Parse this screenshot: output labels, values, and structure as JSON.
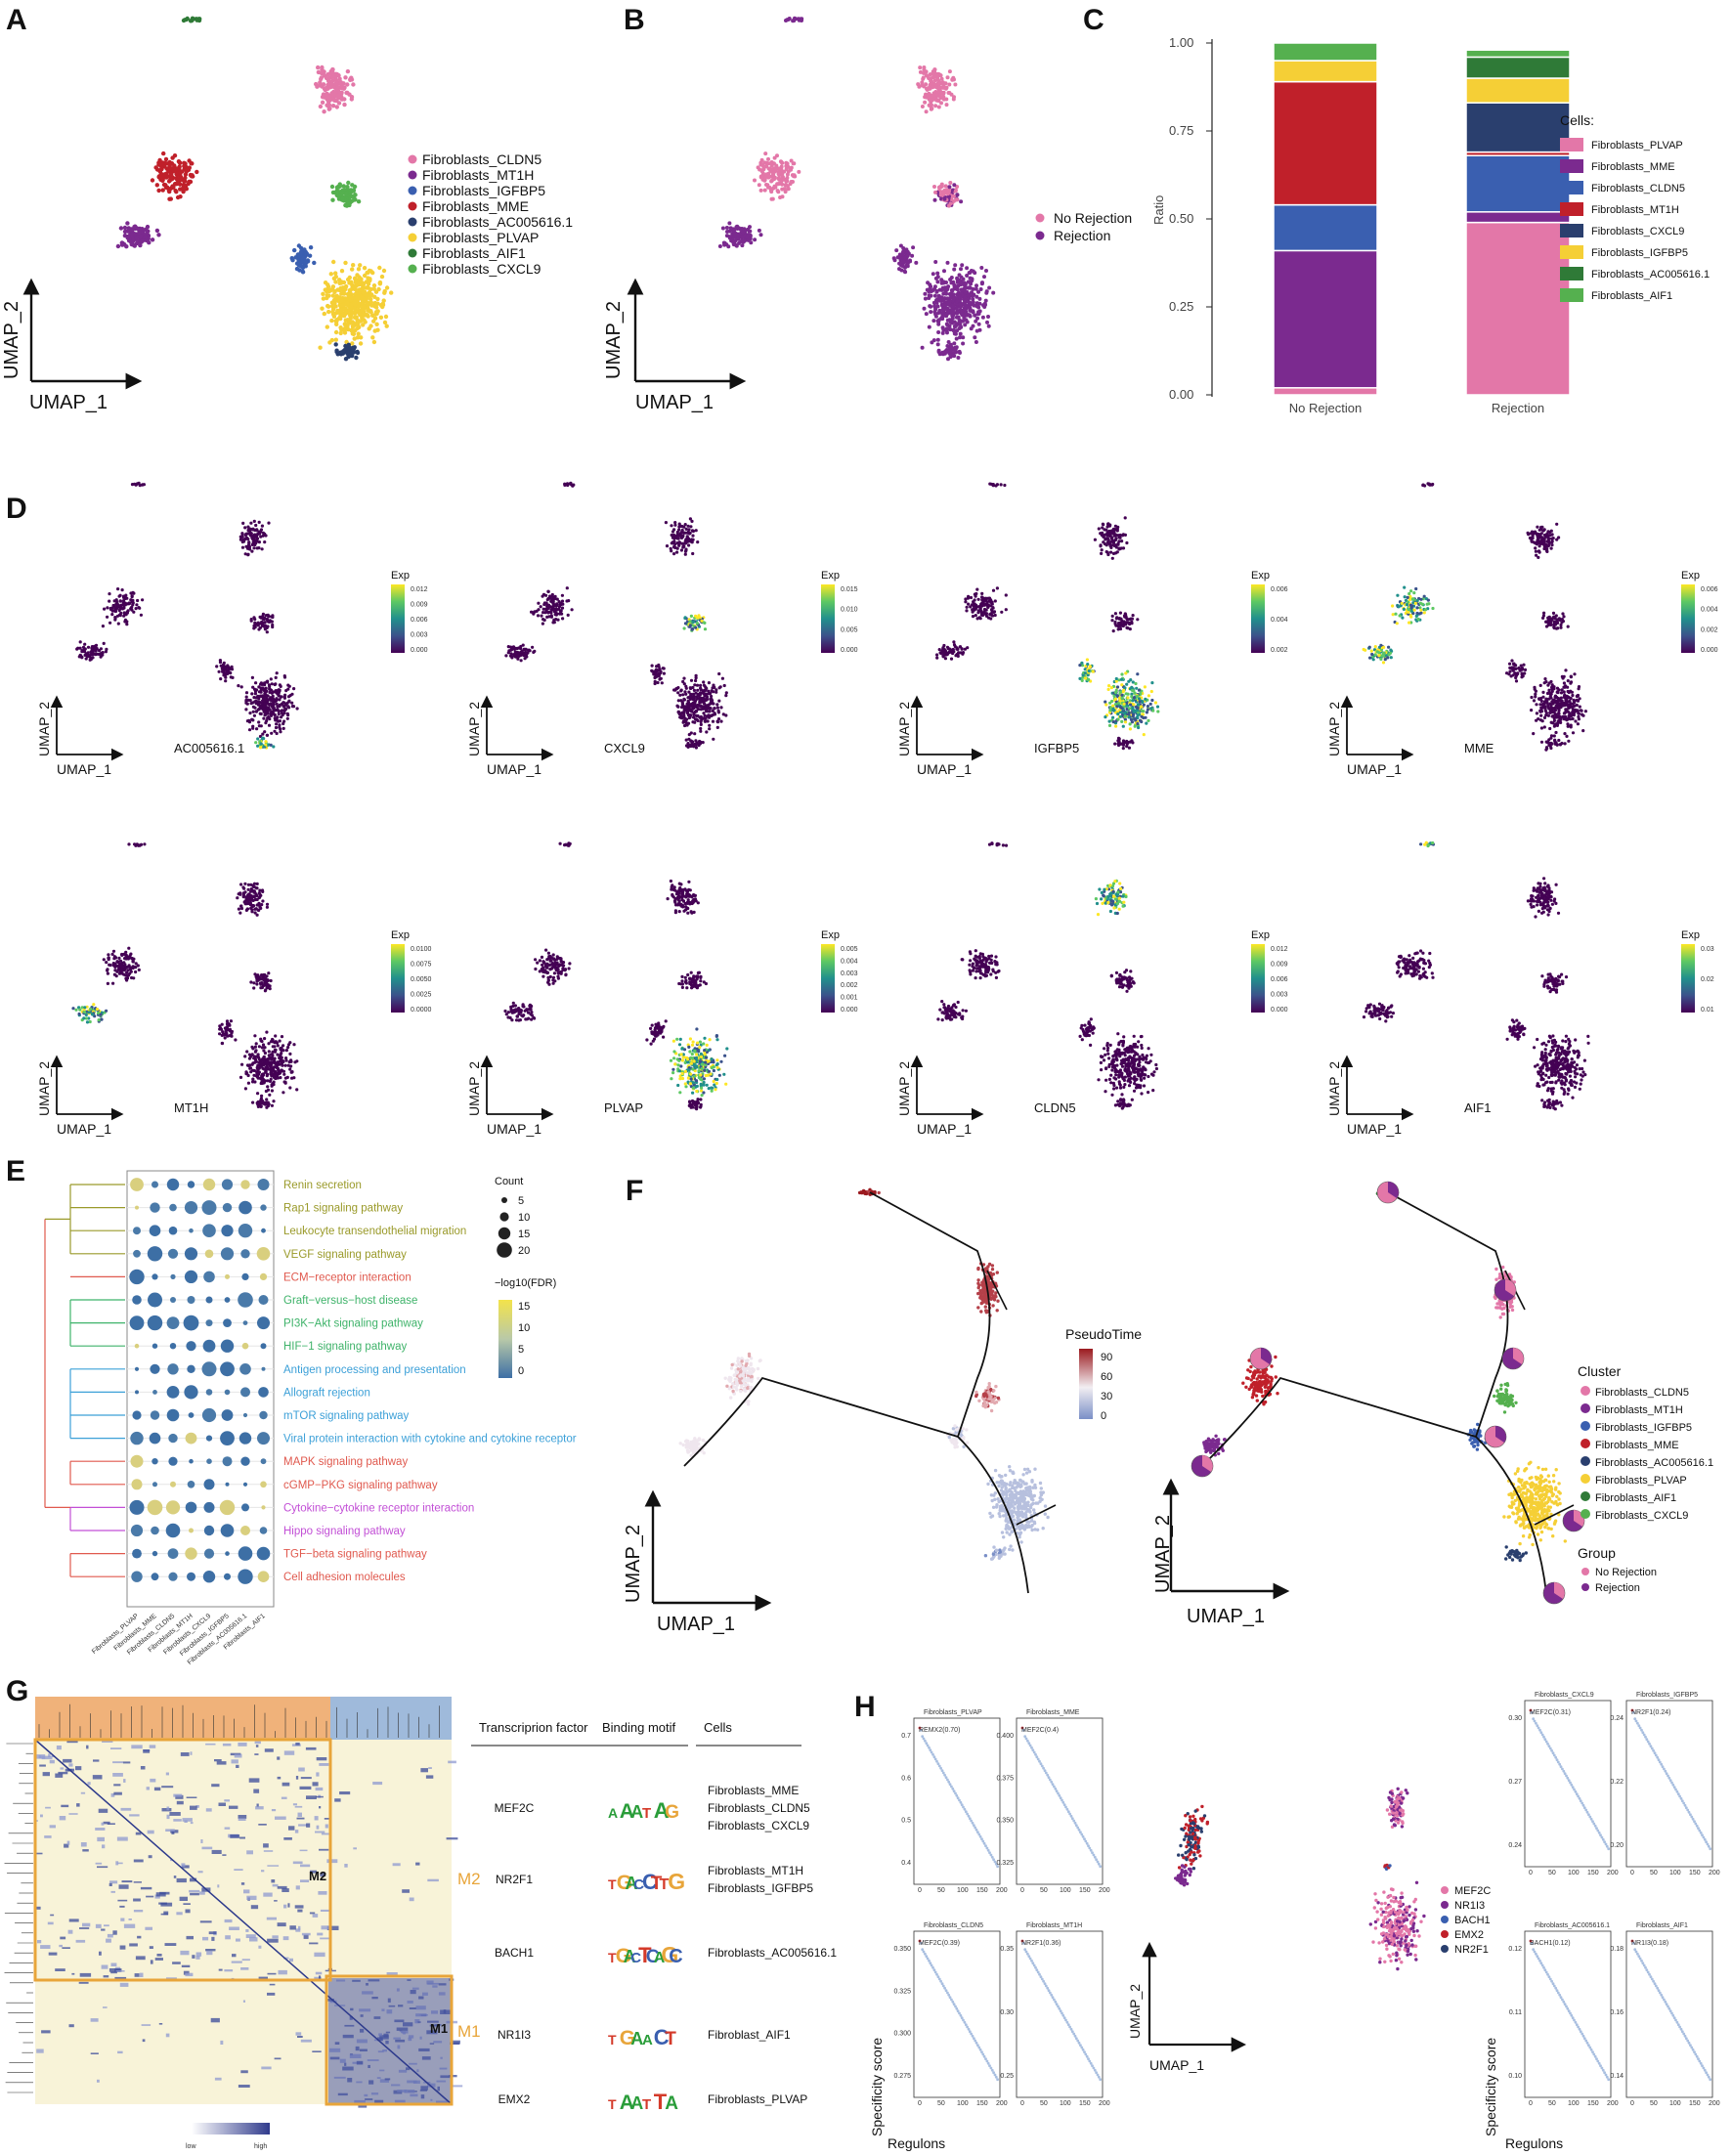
{
  "panels": {
    "A": {
      "label": "A",
      "xlabel": "UMAP_1",
      "ylabel": "UMAP_2",
      "legend": [
        {
          "name": "Fibroblasts_CLDN5",
          "color": "#e377a8"
        },
        {
          "name": "Fibroblasts_MT1H",
          "color": "#7b2a8f"
        },
        {
          "name": "Fibroblasts_IGFBP5",
          "color": "#3a5fb0"
        },
        {
          "name": "Fibroblasts_MME",
          "color": "#c0202a"
        },
        {
          "name": "Fibroblasts_AC005616.1",
          "color": "#2a3f6e"
        },
        {
          "name": "Fibroblasts_PLVAP",
          "color": "#f5cf36"
        },
        {
          "name": "Fibroblasts_AIF1",
          "color": "#2f7a37"
        },
        {
          "name": "Fibroblasts_CXCL9",
          "color": "#55b04f"
        }
      ]
    },
    "B": {
      "label": "B",
      "xlabel": "UMAP_1",
      "ylabel": "UMAP_2",
      "legend": [
        {
          "name": "No Rejection",
          "color": "#e377a8"
        },
        {
          "name": "Rejection",
          "color": "#7b2a8f"
        }
      ]
    },
    "C": {
      "label": "C",
      "ylabel": "Ratio",
      "legend_title": "Cells:",
      "yticks": [
        "1.00",
        "0.75",
        "0.50",
        "0.25",
        "0.00"
      ],
      "legend": [
        {
          "name": "Fibroblasts_PLVAP",
          "color": "#e377a8"
        },
        {
          "name": "Fibroblasts_MME",
          "color": "#7b2a8f"
        },
        {
          "name": "Fibroblasts_CLDN5",
          "color": "#3a5fb0"
        },
        {
          "name": "Fibroblasts_MT1H",
          "color": "#c0202a"
        },
        {
          "name": "Fibroblasts_CXCL9",
          "color": "#2a3f6e"
        },
        {
          "name": "Fibroblasts_IGFBP5",
          "color": "#f5cf36"
        },
        {
          "name": "Fibroblasts_AC005616.1",
          "color": "#2f7a37"
        },
        {
          "name": "Fibroblasts_AIF1",
          "color": "#55b04f"
        }
      ]
    },
    "D": {
      "label": "D",
      "xlabel": "UMAP_1",
      "ylabel": "UMAP_2",
      "colorbar_title": "Exp",
      "plots": [
        {
          "gene": "AC005616.1",
          "ticks": [
            "0.012",
            "0.009",
            "0.006",
            "0.003",
            "0.000"
          ]
        },
        {
          "gene": "CXCL9",
          "ticks": [
            "0.015",
            "0.010",
            "0.005",
            "0.000"
          ]
        },
        {
          "gene": "IGFBP5",
          "ticks": [
            "0.006",
            "0.004",
            "0.002"
          ]
        },
        {
          "gene": "MME",
          "ticks": [
            "0.006",
            "0.004",
            "0.002",
            "0.000"
          ]
        },
        {
          "gene": "MT1H",
          "ticks": [
            "0.0100",
            "0.0075",
            "0.0050",
            "0.0025",
            "0.0000"
          ]
        },
        {
          "gene": "PLVAP",
          "ticks": [
            "0.005",
            "0.004",
            "0.003",
            "0.002",
            "0.001",
            "0.000"
          ]
        },
        {
          "gene": "CLDN5",
          "ticks": [
            "0.012",
            "0.009",
            "0.006",
            "0.003",
            "0.000"
          ]
        },
        {
          "gene": "AIF1",
          "ticks": [
            "0.03",
            "0.02",
            "0.01"
          ]
        }
      ]
    },
    "E": {
      "label": "E",
      "size_title": "Count",
      "size_ticks": [
        "5",
        "10",
        "15",
        "20"
      ],
      "color_title": "−log10(FDR)",
      "color_ticks": [
        "15",
        "10",
        "5",
        "0"
      ],
      "pathways": [
        {
          "name": "Renin secretion",
          "color": "#9a9a2a"
        },
        {
          "name": "Rap1 signaling pathway",
          "color": "#9a9a2a"
        },
        {
          "name": "Leukocyte transendothelial migration",
          "color": "#9a9a2a"
        },
        {
          "name": "VEGF signaling pathway",
          "color": "#9a9a2a"
        },
        {
          "name": "ECM−receptor interaction",
          "color": "#e0594e"
        },
        {
          "name": "Graft−versus−host disease",
          "color": "#3fb36a"
        },
        {
          "name": "PI3K−Akt signaling pathway",
          "color": "#3fb36a"
        },
        {
          "name": "HIF−1 signaling pathway",
          "color": "#3fb36a"
        },
        {
          "name": "Antigen processing and presentation",
          "color": "#3ca0d8"
        },
        {
          "name": "Allograft rejection",
          "color": "#3ca0d8"
        },
        {
          "name": "mTOR signaling pathway",
          "color": "#3ca0d8"
        },
        {
          "name": "Viral protein interaction with cytokine and cytokine receptor",
          "color": "#3ca0d8"
        },
        {
          "name": "MAPK signaling pathway",
          "color": "#e0594e"
        },
        {
          "name": "cGMP−PKG signaling pathway",
          "color": "#e0594e"
        },
        {
          "name": "Cytokine−cytokine receptor interaction",
          "color": "#c24fd6"
        },
        {
          "name": "Hippo signaling pathway",
          "color": "#c24fd6"
        },
        {
          "name": "TGF−beta signaling pathway",
          "color": "#e0594e"
        },
        {
          "name": "Cell adhesion molecules",
          "color": "#e0594e"
        }
      ],
      "columns": [
        "Fibroblasts_PLVAP",
        "Fibroblasts_MME",
        "Fibroblasts_CLDN5",
        "Fibroblasts_MT1H",
        "Fibroblasts_CXCL9",
        "Fibroblasts_IGFBP5",
        "Fibroblasts_AC005616.1",
        "Fibroblasts_AIF1"
      ]
    },
    "F": {
      "label": "F",
      "xlabel": "UMAP_1",
      "ylabel": "UMAP_2",
      "pseudotime_title": "PseudoTime",
      "pseudotime_ticks": [
        "90",
        "60",
        "30",
        "0"
      ],
      "cluster_title": "Cluster",
      "clusters": [
        {
          "name": "Fibroblasts_CLDN5",
          "color": "#e377a8"
        },
        {
          "name": "Fibroblasts_MT1H",
          "color": "#7b2a8f"
        },
        {
          "name": "Fibroblasts_IGFBP5",
          "color": "#3a5fb0"
        },
        {
          "name": "Fibroblasts_MME",
          "color": "#c0202a"
        },
        {
          "name": "Fibroblasts_AC005616.1",
          "color": "#2a3f6e"
        },
        {
          "name": "Fibroblasts_PLVAP",
          "color": "#f5cf36"
        },
        {
          "name": "Fibroblasts_AIF1",
          "color": "#2f7a37"
        },
        {
          "name": "Fibroblasts_CXCL9",
          "color": "#55b04f"
        }
      ],
      "group_title": "Group",
      "groups": [
        {
          "name": "No Rejection",
          "color": "#e377a8"
        },
        {
          "name": "Rejection",
          "color": "#7b2a8f"
        }
      ]
    },
    "G": {
      "label": "G",
      "module_labels": [
        "M2",
        "M1"
      ],
      "scale_low": "low",
      "scale_high": "high",
      "headers": [
        "Transcriprion factor",
        "Binding motif",
        "Cells"
      ],
      "rows": [
        {
          "tf": "MEF2C",
          "motif": "AAATAG",
          "cells": [
            "Fibroblasts_MME",
            "Fibroblasts_CLDN5",
            "Fibroblasts_CXCL9"
          ]
        },
        {
          "tf": "NR2F1",
          "motif": "TGACCTTG",
          "cells": [
            "Fibroblasts_MT1H",
            "Fibroblasts_IGFBP5"
          ]
        },
        {
          "tf": "BACH1",
          "motif": "TGACTCAGC",
          "cells": [
            "Fibroblasts_AC005616.1"
          ]
        },
        {
          "tf": "NR1I3",
          "motif": "TGAACT",
          "cells": [
            "Fibroblast_AIF1"
          ]
        },
        {
          "tf": "EMX2",
          "motif": "TAATTA",
          "cells": [
            "Fibroblasts_PLVAP"
          ]
        }
      ]
    },
    "H": {
      "label": "H",
      "xlabel": "UMAP_1",
      "ylabel": "UMAP_2",
      "ylabel_spec": "Specificity score",
      "xlabel_reg": "Regulons",
      "legend": [
        {
          "name": "MEF2C",
          "color": "#e377a8"
        },
        {
          "name": "NR1I3",
          "color": "#7b2a8f"
        },
        {
          "name": "BACH1",
          "color": "#3a5fb0"
        },
        {
          "name": "EMX2",
          "color": "#c0202a"
        },
        {
          "name": "NR2F1",
          "color": "#2a3f6e"
        }
      ],
      "mini": [
        {
          "title": "Fibroblasts_PLVAP",
          "top": "REMX2(0.70)",
          "yt": [
            "0.7",
            "0.6",
            "0.5",
            "0.4"
          ]
        },
        {
          "title": "Fibroblasts_MME",
          "top": "MEF2C(0.4)",
          "yt": [
            "0.400",
            "0.375",
            "0.350",
            "0.325"
          ]
        },
        {
          "title": "Fibroblasts_CLDN5",
          "top": "MEF2C(0.39)",
          "yt": [
            "0.350",
            "0.325",
            "0.300",
            "0.275"
          ]
        },
        {
          "title": "Fibroblasts_MT1H",
          "top": "NR2F1(0.36)",
          "yt": [
            "0.35",
            "0.30",
            "0.25"
          ]
        },
        {
          "title": "Fibroblasts_CXCL9",
          "top": "MEF2C(0.31)",
          "yt": [
            "0.30",
            "0.27",
            "0.24"
          ]
        },
        {
          "title": "Fibroblasts_IGFBP5",
          "top": "NR2F1(0.24)",
          "yt": [
            "0.24",
            "0.22",
            "0.20"
          ]
        },
        {
          "title": "Fibroblasts_AC005616.1",
          "top": "BACH1(0.12)",
          "yt": [
            "0.12",
            "0.11",
            "0.10"
          ]
        },
        {
          "title": "Fibroblasts_AIF1",
          "top": "NR1I3(0.18)",
          "yt": [
            "0.18",
            "0.16",
            "0.14"
          ]
        }
      ],
      "mini_xticks": [
        "0",
        "50",
        "100",
        "150",
        "200"
      ]
    }
  },
  "chart_data": [
    {
      "type": "bar",
      "title": "",
      "ylabel": "Ratio",
      "categories": [
        "No Rejection",
        "Rejection"
      ],
      "ylim": [
        0,
        1
      ],
      "stacked": true,
      "series": [
        {
          "name": "Fibroblasts_PLVAP",
          "values": [
            0.02,
            0.49
          ]
        },
        {
          "name": "Fibroblasts_MME",
          "values": [
            0.39,
            0.03
          ]
        },
        {
          "name": "Fibroblasts_CLDN5",
          "values": [
            0.13,
            0.16
          ]
        },
        {
          "name": "Fibroblasts_MT1H",
          "values": [
            0.35,
            0.01
          ]
        },
        {
          "name": "Fibroblasts_CXCL9",
          "values": [
            0.0,
            0.14
          ]
        },
        {
          "name": "Fibroblasts_IGFBP5",
          "values": [
            0.06,
            0.07
          ]
        },
        {
          "name": "Fibroblasts_AC005616.1",
          "values": [
            0.0,
            0.06
          ]
        },
        {
          "name": "Fibroblasts_AIF1",
          "values": [
            0.05,
            0.02
          ]
        }
      ]
    }
  ]
}
